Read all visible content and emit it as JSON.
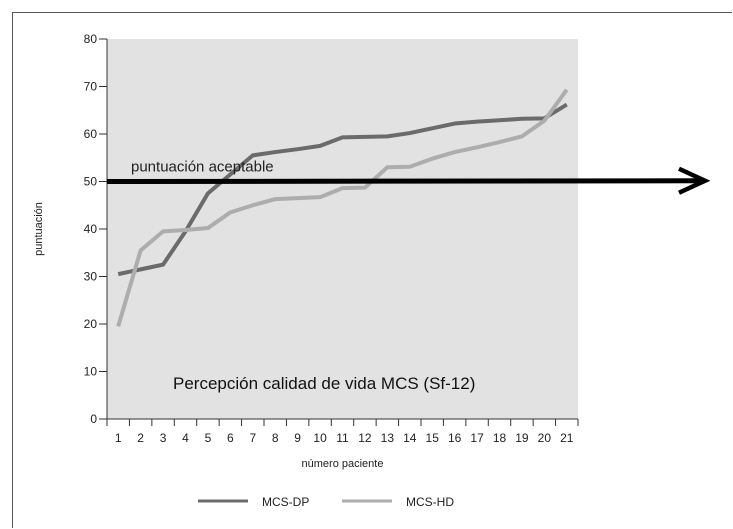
{
  "chart_data": {
    "type": "line",
    "inner_title": "Percepción calidad de vida MCS (Sf-12)",
    "xlabel": "número paciente",
    "ylabel": "puntuación",
    "x": [
      1,
      2,
      3,
      4,
      5,
      6,
      7,
      8,
      9,
      10,
      11,
      12,
      13,
      14,
      15,
      16,
      17,
      18,
      19,
      20,
      21
    ],
    "xlim": [
      0.5,
      21.5
    ],
    "ylim": [
      0,
      80
    ],
    "yticks": [
      0,
      10,
      20,
      30,
      40,
      50,
      60,
      70,
      80
    ],
    "grid": false,
    "legend_position": "bottom-center",
    "series": [
      {
        "name": "MCS-DP",
        "color": "#6b6b6b",
        "values": [
          30.5,
          31.5,
          32.5,
          39.5,
          47.5,
          51.5,
          55.5,
          56.2,
          56.8,
          57.5,
          59.3,
          59.4,
          59.5,
          60.2,
          61.2,
          62.2,
          62.6,
          62.9,
          63.2,
          63.3,
          66.2
        ]
      },
      {
        "name": "MCS-HD",
        "color": "#adadad",
        "values": [
          19.5,
          35.5,
          39.5,
          39.8,
          40.2,
          43.5,
          45.0,
          46.3,
          46.5,
          46.7,
          48.6,
          48.7,
          53.0,
          53.1,
          54.8,
          56.2,
          57.2,
          58.3,
          59.5,
          62.8,
          69.3
        ]
      }
    ],
    "annotations": [
      {
        "text": "puntuación aceptable",
        "type": "arrow-line",
        "y_start": 50,
        "y_end": 51,
        "color": "#000000"
      }
    ],
    "background": "#e2e2e2"
  }
}
